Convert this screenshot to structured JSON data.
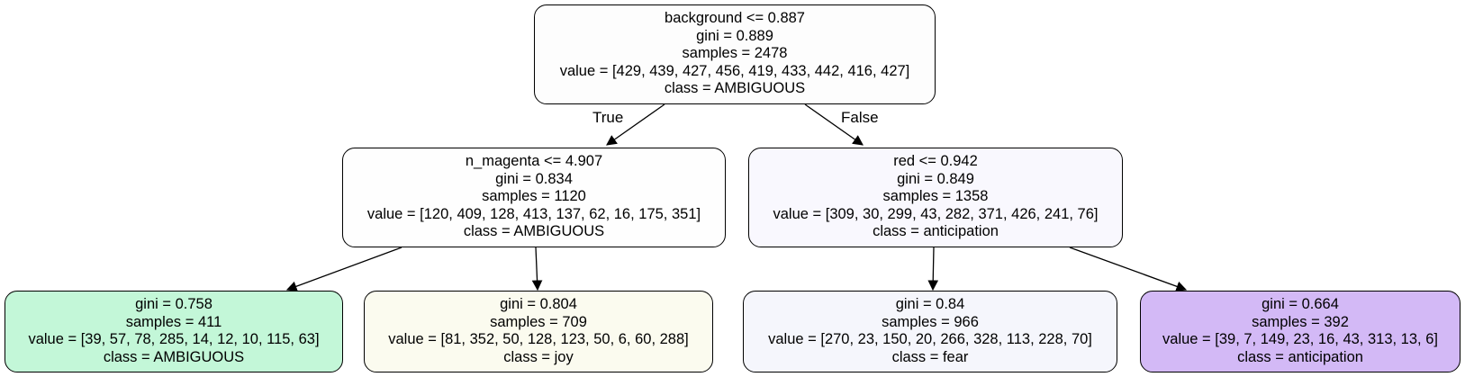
{
  "tree": {
    "root": {
      "lines": [
        "background <= 0.887",
        "gini = 0.889",
        "samples = 2478",
        "value = [429, 439, 427, 456, 419, 433, 442, 416, 427]",
        "class = AMBIGUOUS"
      ],
      "fill": "#fdfdfd"
    },
    "left": {
      "lines": [
        "n_magenta <= 4.907",
        "gini = 0.834",
        "samples = 1120",
        "value = [120, 409, 128, 413, 137, 62, 16, 175, 351]",
        "class = AMBIGUOUS"
      ],
      "fill": "#fefefe"
    },
    "right": {
      "lines": [
        "red <= 0.942",
        "gini = 0.849",
        "samples = 1358",
        "value = [309, 30, 299, 43, 282, 371, 426, 241, 76]",
        "class = anticipation"
      ],
      "fill": "#f9f8fe"
    },
    "leaf1": {
      "lines": [
        "gini = 0.758",
        "samples = 411",
        "value = [39, 57, 78, 285, 14, 12, 10, 115, 63]",
        "class = AMBIGUOUS"
      ],
      "fill": "#c3f7d8"
    },
    "leaf2": {
      "lines": [
        "gini = 0.804",
        "samples = 709",
        "value = [81, 352, 50, 128, 123, 50, 6, 60, 288]",
        "class = joy"
      ],
      "fill": "#fbfbef"
    },
    "leaf3": {
      "lines": [
        "gini = 0.84",
        "samples = 966",
        "value = [270, 23, 150, 20, 266, 328, 113, 228, 70]",
        "class = fear"
      ],
      "fill": "#f5f6fc"
    },
    "leaf4": {
      "lines": [
        "gini = 0.664",
        "samples = 392",
        "value = [39, 7, 149, 23, 16, 43, 313, 13, 6]",
        "class = anticipation"
      ],
      "fill": "#d3b9f6"
    }
  },
  "edge_labels": {
    "true_label": "True",
    "false_label": "False"
  }
}
